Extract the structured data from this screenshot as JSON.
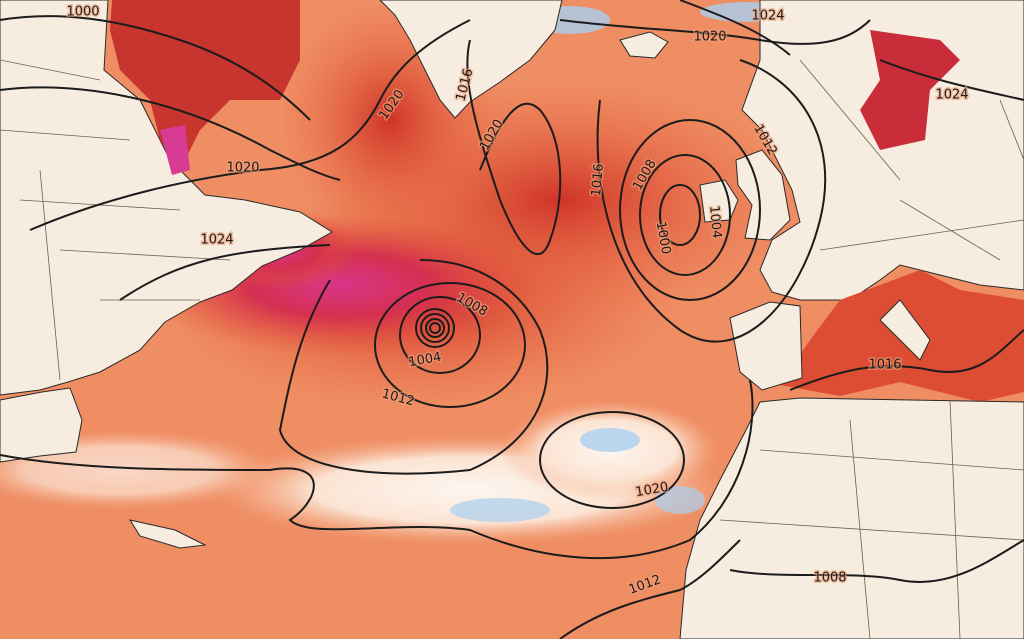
{
  "isobar_labels": [
    "1000",
    "1024",
    "1020",
    "1016",
    "1020",
    "1020",
    "1020",
    "1024",
    "1016",
    "1008",
    "1000",
    "1012",
    "1004",
    "1024",
    "1008",
    "1004",
    "1012",
    "1016",
    "1020",
    "1012",
    "1008"
  ]
}
